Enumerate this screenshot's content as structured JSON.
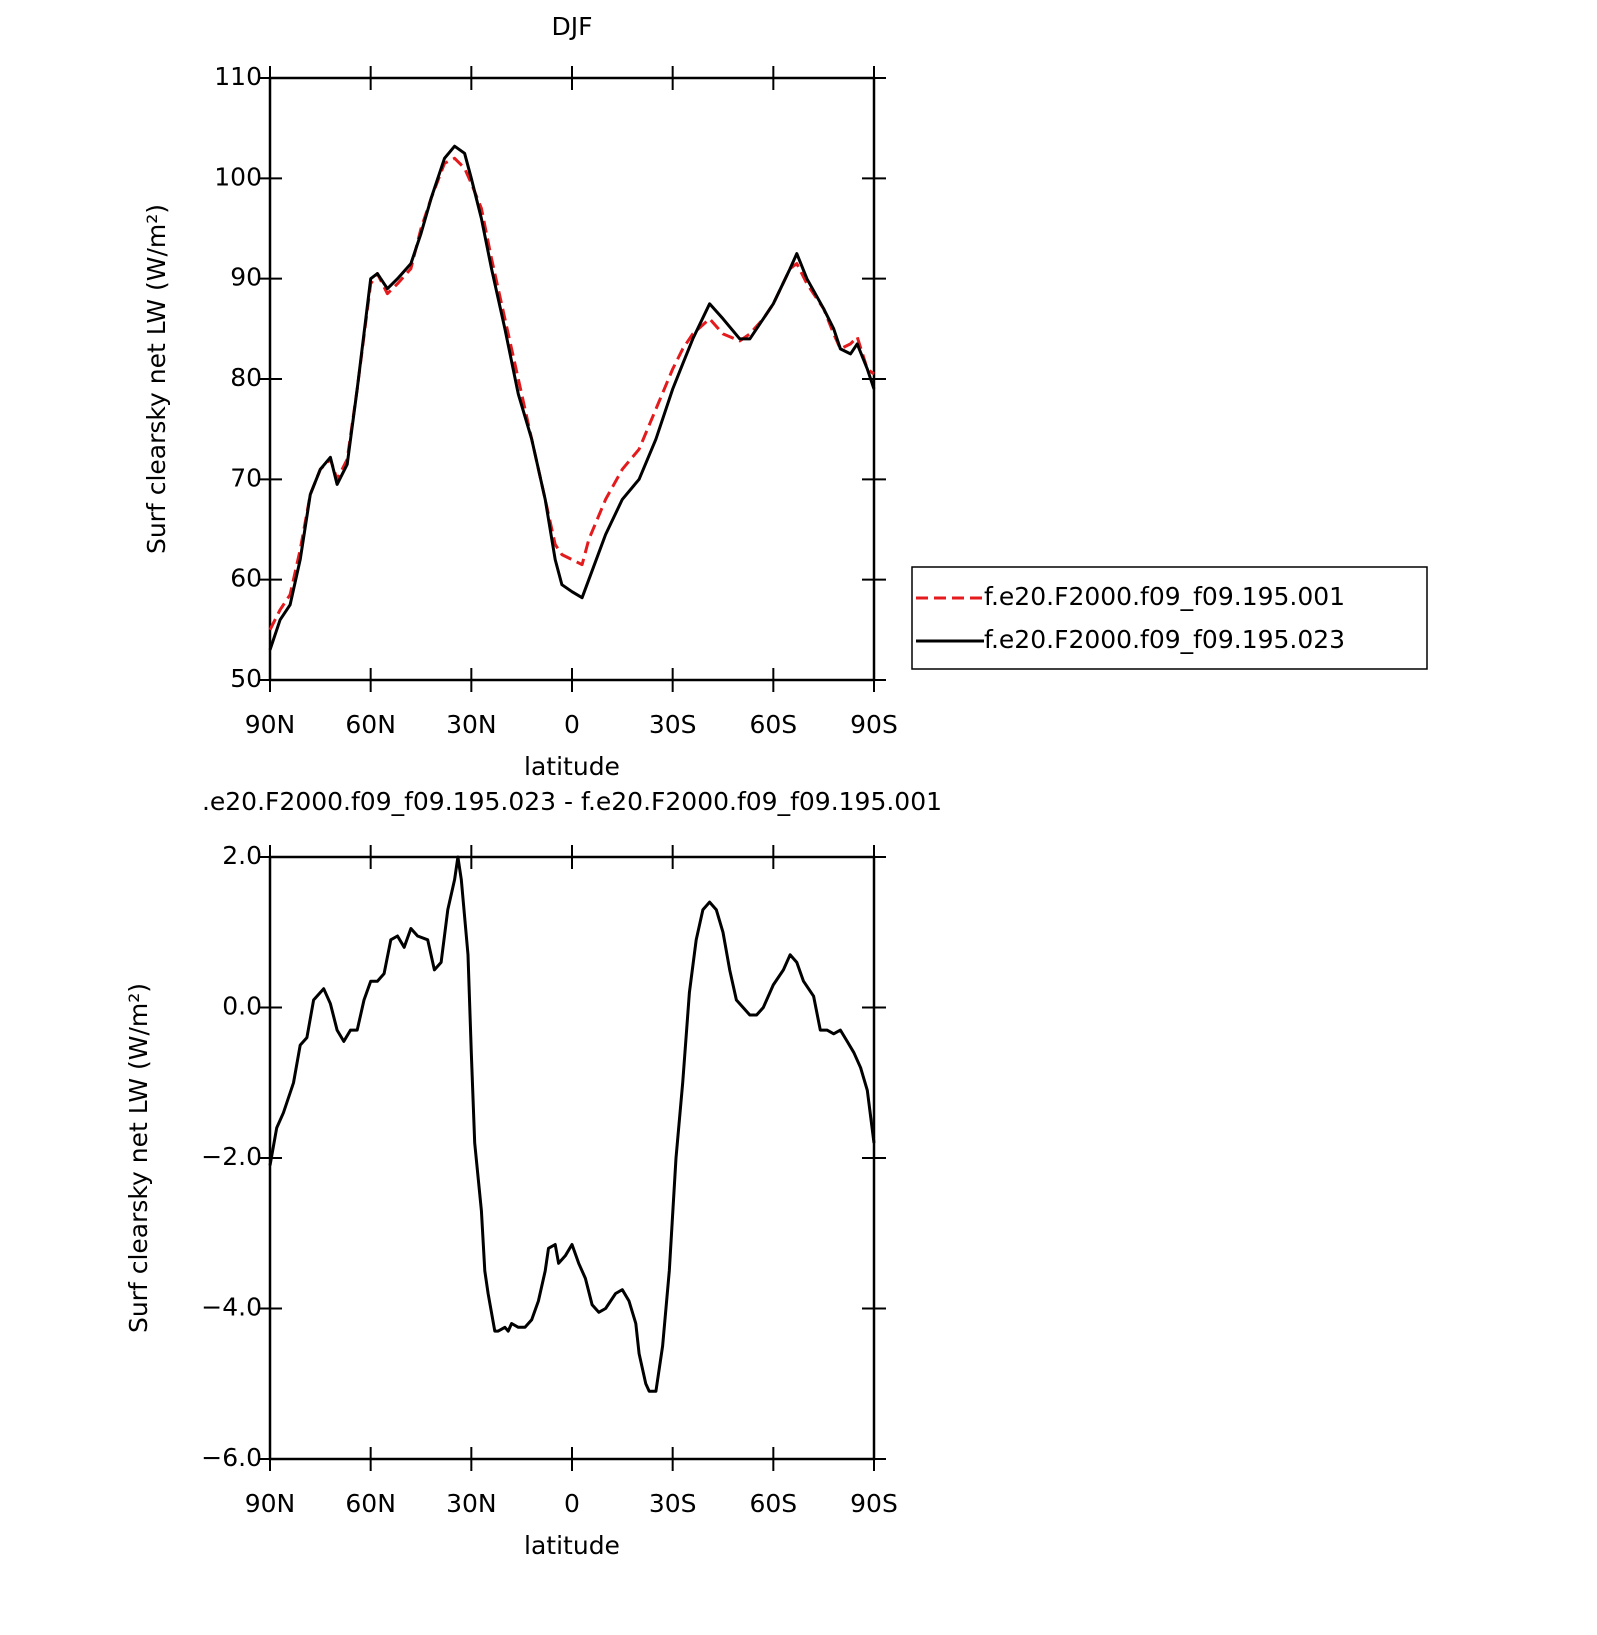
{
  "chart_data": [
    {
      "type": "line",
      "title": "DJF",
      "xlabel": "latitude",
      "ylabel": "Surf clearsky net LW (W/m²)",
      "x": [
        90,
        87,
        84,
        81,
        78,
        75,
        72,
        70,
        67,
        64,
        60,
        58,
        55,
        52,
        48,
        45,
        42,
        38,
        35,
        32,
        30,
        27,
        24,
        20,
        16,
        12,
        8,
        5,
        3,
        0,
        -3,
        -5,
        -10,
        -15,
        -20,
        -25,
        -30,
        -33,
        -36,
        -41,
        -45,
        -50,
        -53,
        -57,
        -60,
        -65,
        -67,
        -70,
        -75,
        -78,
        -80,
        -83,
        -85,
        -88,
        -90
      ],
      "series": [
        {
          "name": "f.e20.F2000.f09_f09.195.001",
          "color": "#e41a1c",
          "dash": true,
          "values": [
            55,
            57,
            58.5,
            63,
            68.5,
            71,
            72,
            70,
            72,
            79,
            89.5,
            90.5,
            88.5,
            89.5,
            91,
            95,
            98,
            101.5,
            102,
            101,
            99.5,
            97,
            92,
            86,
            80,
            74,
            68,
            63.5,
            62.5,
            62,
            61.5,
            64,
            68,
            71,
            73,
            77,
            81,
            83,
            84.5,
            86,
            84.5,
            83.8,
            84.5,
            86,
            87.5,
            91,
            91.5,
            89.5,
            87,
            84.5,
            83,
            83.5,
            84.2,
            81,
            80.5
          ]
        },
        {
          "name": "f.e20.F2000.f09_f09.195.023",
          "color": "#000000",
          "dash": false,
          "values": [
            53,
            56,
            57.5,
            62,
            68.5,
            71,
            72.2,
            69.5,
            71.5,
            79,
            90,
            90.5,
            89,
            90,
            91.5,
            94.5,
            98,
            102,
            103.2,
            102.5,
            100,
            96,
            91,
            85,
            78.5,
            74,
            68,
            62,
            59.5,
            58.8,
            58.2,
            60,
            64.5,
            68,
            70,
            74,
            79,
            81.5,
            84,
            87.5,
            86,
            84,
            84,
            86,
            87.5,
            91,
            92.5,
            90,
            87,
            85,
            83,
            82.5,
            83.5,
            81,
            79
          ]
        }
      ],
      "xlim": [
        90,
        -90
      ],
      "xticks": [
        {
          "value": 90,
          "label": "90N"
        },
        {
          "value": 60,
          "label": "60N"
        },
        {
          "value": 30,
          "label": "30N"
        },
        0,
        {
          "value": -30,
          "label": "30S"
        },
        {
          "value": -60,
          "label": "60S"
        },
        {
          "value": -90,
          "label": "90S"
        }
      ],
      "ylim": [
        50,
        110
      ],
      "yticks": [
        50,
        60,
        70,
        80,
        90,
        100,
        110
      ],
      "legend": "right"
    },
    {
      "type": "line",
      "title": ".e20.F2000.f09_f09.195.023 - f.e20.F2000.f09_f09.195.001",
      "xlabel": "latitude",
      "ylabel": "Surf clearsky net LW (W/m²)",
      "x": [
        90,
        88,
        86,
        83,
        81,
        79,
        77,
        75,
        74,
        72,
        70,
        68,
        66,
        64,
        62,
        60,
        58,
        56,
        54,
        52,
        50,
        48,
        46,
        43,
        41,
        39,
        37,
        35,
        34,
        33,
        31,
        30,
        29,
        27,
        26,
        25,
        23,
        22,
        20,
        19,
        18,
        16,
        14,
        12,
        10,
        8,
        7,
        5,
        4,
        2,
        0,
        -2,
        -4,
        -6,
        -8,
        -10,
        -13,
        -15,
        -17,
        -19,
        -20,
        -22,
        -23,
        -25,
        -27,
        -29,
        -31,
        -33,
        -35,
        -37,
        -39,
        -41,
        -43,
        -45,
        -47,
        -49,
        -51,
        -53,
        -55,
        -57,
        -60,
        -63,
        -65,
        -67,
        -69,
        -72,
        -74,
        -76,
        -78,
        -80,
        -82,
        -84,
        -86,
        -88,
        -90
      ],
      "series": [
        {
          "color": "#000000",
          "dash": false,
          "values": [
            -2.1,
            -1.6,
            -1.4,
            -1.0,
            -0.5,
            -0.4,
            0.1,
            0.2,
            0.25,
            0.05,
            -0.3,
            -0.45,
            -0.3,
            -0.3,
            0.1,
            0.35,
            0.35,
            0.45,
            0.9,
            0.95,
            0.8,
            1.05,
            0.95,
            0.9,
            0.5,
            0.6,
            1.3,
            1.7,
            2.0,
            1.7,
            0.7,
            -0.6,
            -1.8,
            -2.7,
            -3.5,
            -3.8,
            -4.3,
            -4.3,
            -4.25,
            -4.3,
            -4.2,
            -4.25,
            -4.25,
            -4.15,
            -3.9,
            -3.5,
            -3.2,
            -3.15,
            -3.4,
            -3.3,
            -3.15,
            -3.4,
            -3.6,
            -3.95,
            -4.05,
            -4.0,
            -3.8,
            -3.75,
            -3.9,
            -4.2,
            -4.6,
            -5.0,
            -5.1,
            -5.1,
            -4.5,
            -3.5,
            -2.0,
            -1.0,
            0.2,
            0.9,
            1.3,
            1.4,
            1.3,
            1.0,
            0.5,
            0.1,
            0.0,
            -0.1,
            -0.1,
            0.0,
            0.3,
            0.5,
            0.7,
            0.6,
            0.35,
            0.15,
            -0.3,
            -0.3,
            -0.35,
            -0.3,
            -0.45,
            -0.6,
            -0.8,
            -1.1,
            -1.8
          ]
        }
      ],
      "xlim": [
        90,
        -90
      ],
      "xticks": [
        {
          "value": 90,
          "label": "90N"
        },
        {
          "value": 60,
          "label": "60N"
        },
        {
          "value": 30,
          "label": "30N"
        },
        0,
        {
          "value": -30,
          "label": "30S"
        },
        {
          "value": -60,
          "label": "60S"
        },
        {
          "value": -90,
          "label": "90S"
        }
      ],
      "ylim": [
        -6,
        2
      ],
      "yticks": [
        {
          "value": -6,
          "label": "−6.0"
        },
        {
          "value": -4,
          "label": "−4.0"
        },
        {
          "value": -2,
          "label": "−2.0"
        },
        {
          "value": 0,
          "label": "0.0"
        },
        {
          "value": 2,
          "label": "2.0"
        }
      ]
    }
  ]
}
